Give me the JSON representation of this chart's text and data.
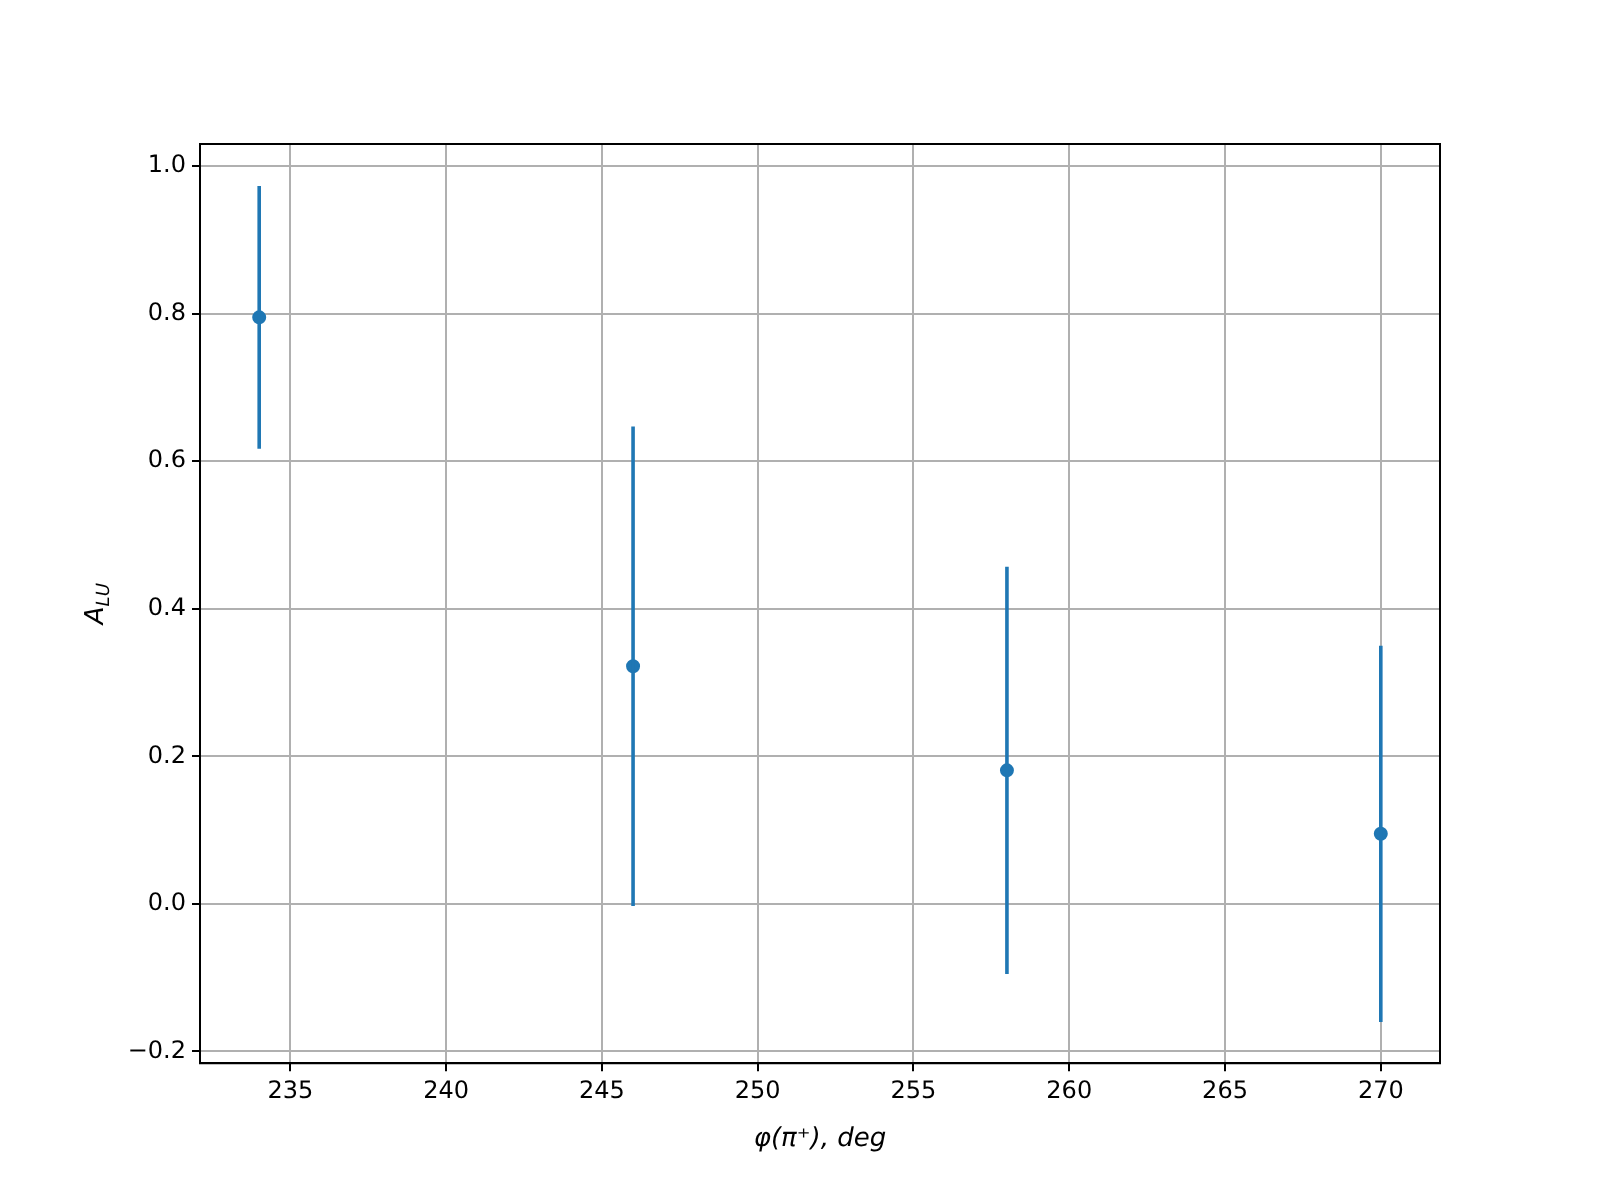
{
  "chart_data": {
    "type": "scatter",
    "xlabel": "φ(π⁺), deg",
    "ylabel": "A$_{LU}$",
    "x": [
      234,
      246,
      258,
      270
    ],
    "series": [
      {
        "color": "#1f77b4",
        "values": [
          0.795,
          0.322,
          0.181,
          0.095
        ],
        "errors": [
          0.178,
          0.325,
          0.276,
          0.255
        ]
      }
    ],
    "xlim": [
      232.1,
      271.9
    ],
    "ylim": [
      -0.216,
      1.03
    ],
    "xticks": [
      235,
      240,
      245,
      250,
      255,
      260,
      265,
      270
    ],
    "yticks": [
      {
        "value": -0.2,
        "label": "−0.2"
      },
      {
        "value": 0,
        "label": "0.0"
      },
      {
        "value": 0.2,
        "label": "0.2"
      },
      {
        "value": 0.4,
        "label": "0.4"
      },
      {
        "value": 0.6,
        "label": "0.6"
      },
      {
        "value": 0.8,
        "label": "0.8"
      },
      {
        "value": 1,
        "label": "1.0"
      }
    ],
    "grid": true,
    "marker": "circle",
    "legend": false
  }
}
